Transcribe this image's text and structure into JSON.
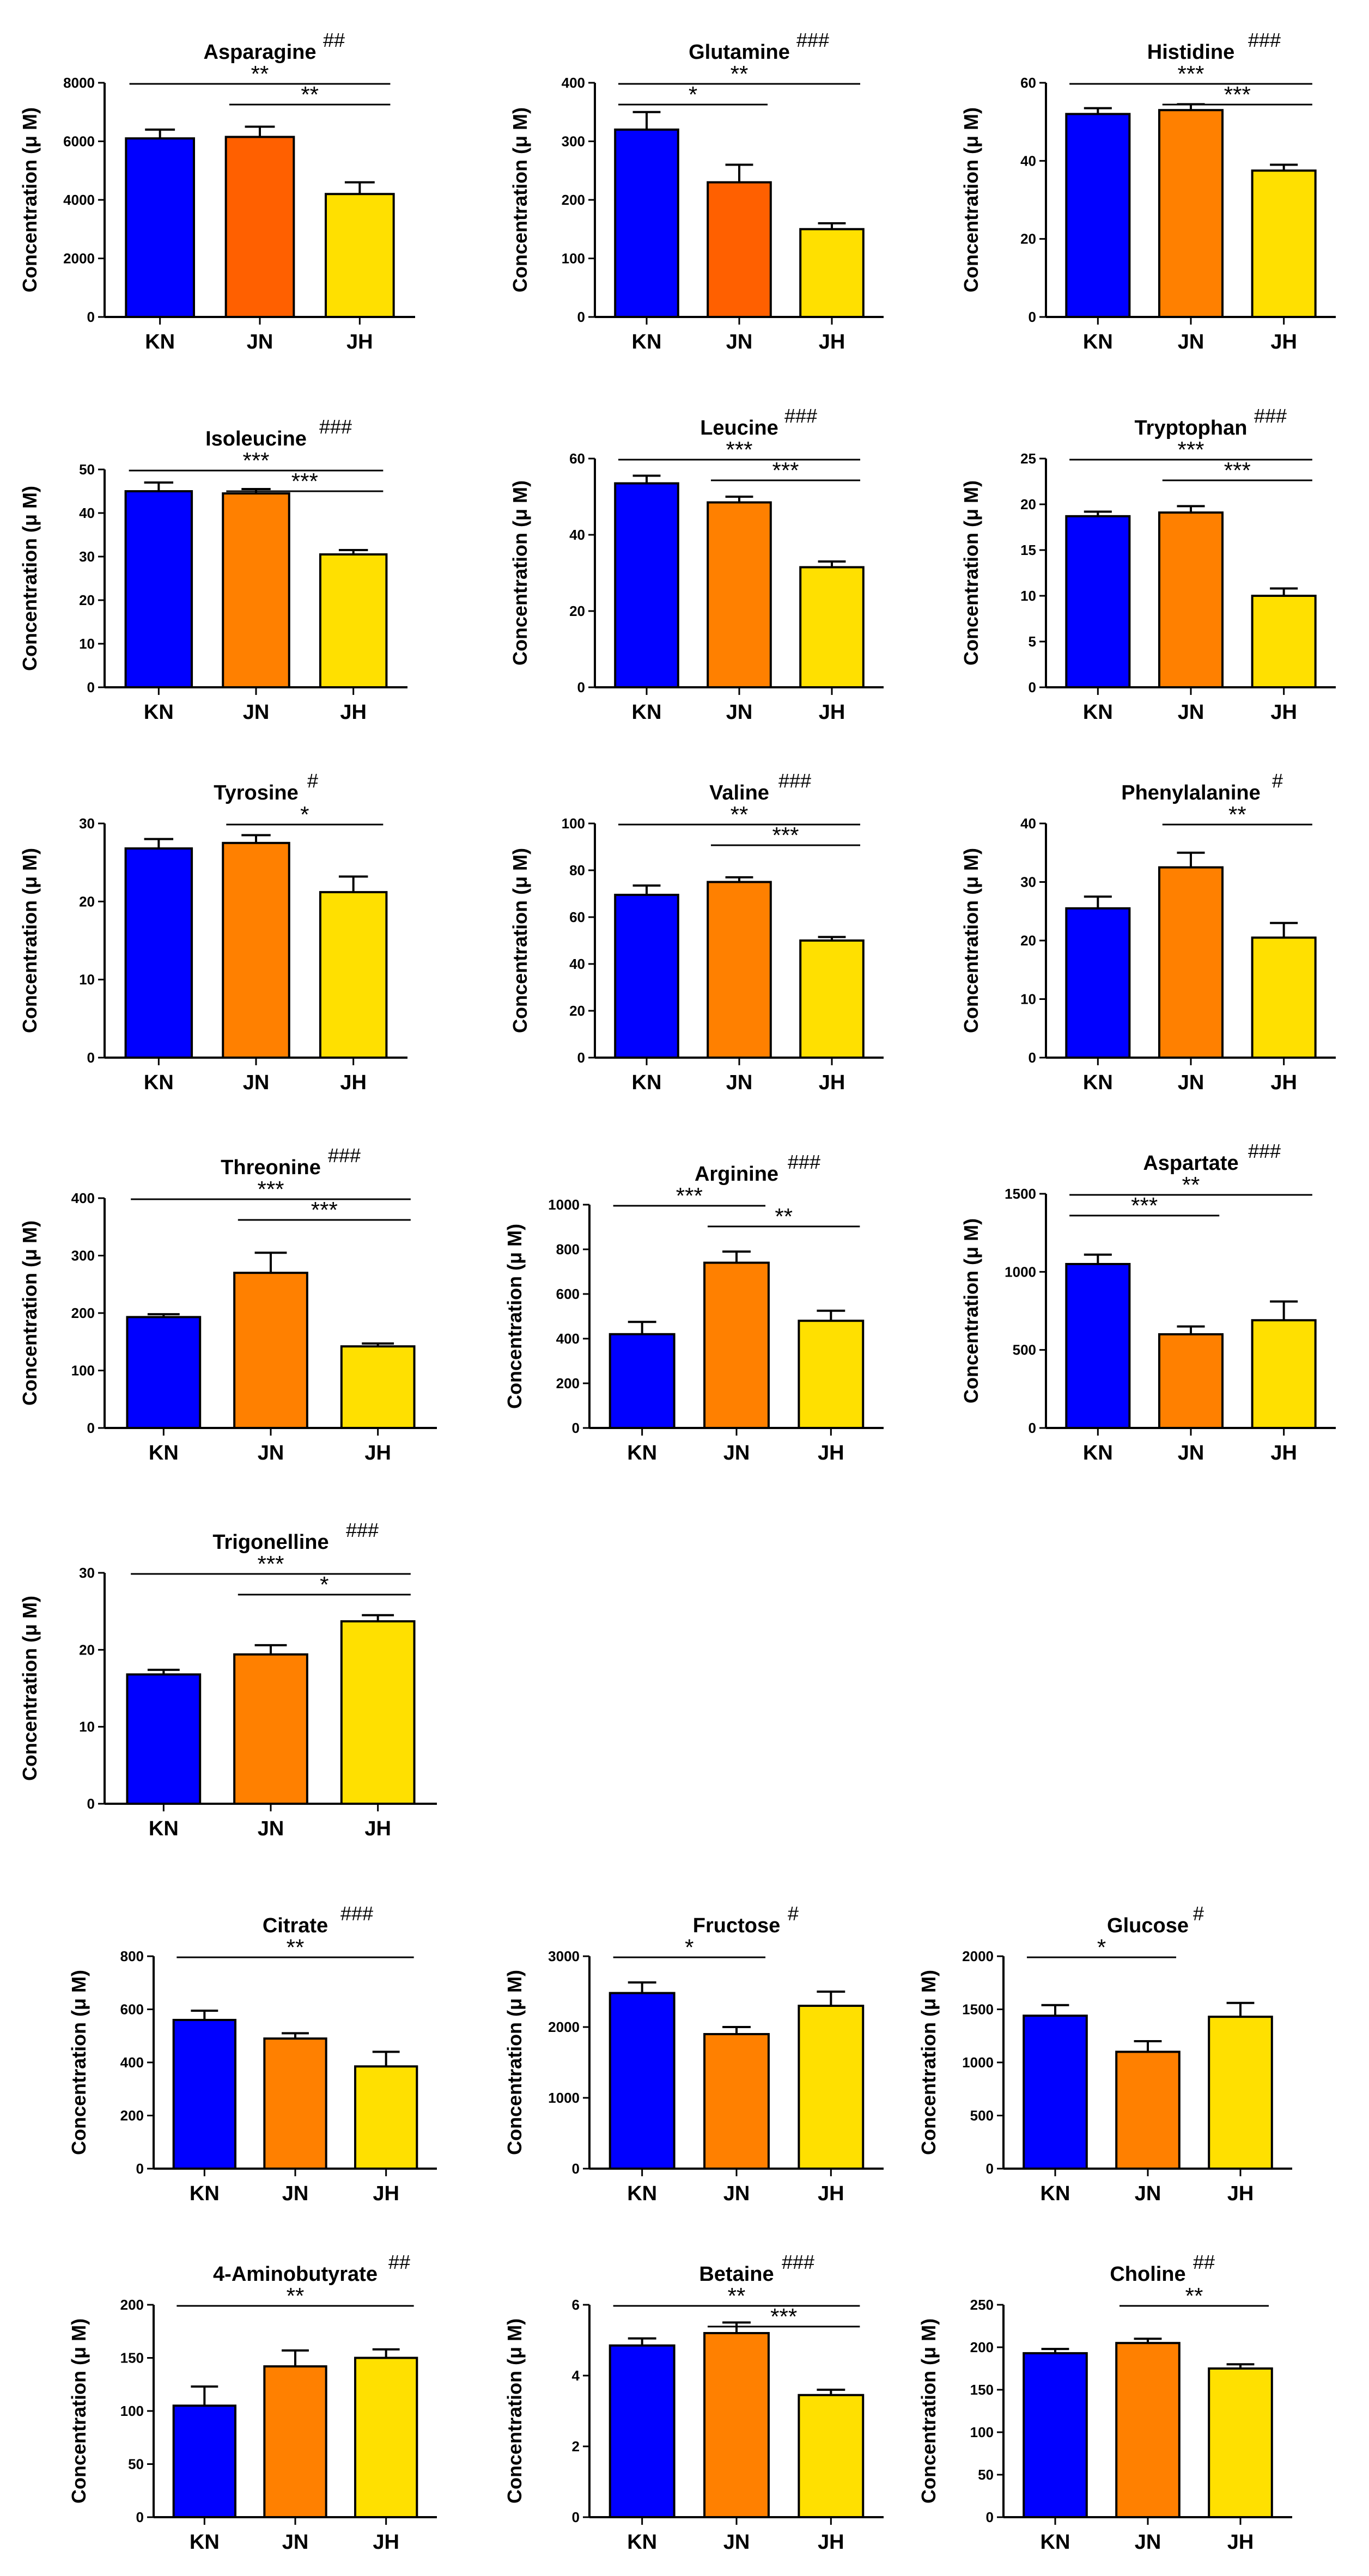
{
  "figure": {
    "ylabel_default": "Concentration (μ M)"
  },
  "colors": {
    "KN": "#0000FF",
    "JN": "#FF8000",
    "JN_alt": "#FF6000",
    "JH": "#FFE000"
  },
  "chart_data": [
    {
      "id": "asparagine",
      "type": "bar",
      "title": "Asparagine",
      "hashes": "##",
      "ylabel": "Concentration (μ M)",
      "categories": [
        "KN",
        "JN",
        "JH"
      ],
      "values": [
        6100,
        6150,
        4200
      ],
      "errors": [
        300,
        350,
        400
      ],
      "ylim": [
        0,
        8000
      ],
      "yticks": [
        0,
        2000,
        4000,
        6000,
        8000
      ],
      "jn_color": "JN_alt",
      "sig": [
        {
          "from": 0,
          "to": 2,
          "label": "**"
        },
        {
          "from": 1,
          "to": 2,
          "label": "**"
        }
      ]
    },
    {
      "id": "glutamine",
      "type": "bar",
      "title": "Glutamine",
      "hashes": "###",
      "ylabel": "Concentration (μ M)",
      "categories": [
        "KN",
        "JN",
        "JH"
      ],
      "values": [
        320,
        230,
        150
      ],
      "errors": [
        30,
        30,
        10
      ],
      "ylim": [
        0,
        400
      ],
      "yticks": [
        0,
        100,
        200,
        300,
        400
      ],
      "jn_color": "JN_alt",
      "sig": [
        {
          "from": 0,
          "to": 2,
          "label": "**"
        },
        {
          "from": 0,
          "to": 1,
          "label": "*"
        }
      ]
    },
    {
      "id": "histidine",
      "type": "bar",
      "title": "Histidine",
      "hashes": "###",
      "ylabel": "Concentration (μ M)",
      "categories": [
        "KN",
        "JN",
        "JH"
      ],
      "values": [
        52,
        53,
        37.5
      ],
      "errors": [
        1.5,
        1.5,
        1.5
      ],
      "ylim": [
        0,
        60
      ],
      "yticks": [
        0,
        20,
        40,
        60
      ],
      "sig": [
        {
          "from": 0,
          "to": 2,
          "label": "***"
        },
        {
          "from": 1,
          "to": 2,
          "label": "***"
        }
      ]
    },
    {
      "id": "isoleucine",
      "type": "bar",
      "title": "Isoleucine",
      "hashes": "###",
      "ylabel": "Concentration (μ M)",
      "categories": [
        "KN",
        "JN",
        "JH"
      ],
      "values": [
        45,
        44.5,
        30.5
      ],
      "errors": [
        2,
        1,
        1
      ],
      "ylim": [
        0,
        50
      ],
      "yticks": [
        0,
        10,
        20,
        30,
        40,
        50
      ],
      "sig": [
        {
          "from": 0,
          "to": 2,
          "label": "***"
        },
        {
          "from": 1,
          "to": 2,
          "label": "***"
        }
      ]
    },
    {
      "id": "leucine",
      "type": "bar",
      "title": "Leucine",
      "hashes": "###",
      "ylabel": "Concentration (μ M)",
      "categories": [
        "KN",
        "JN",
        "JH"
      ],
      "values": [
        53.5,
        48.5,
        31.5
      ],
      "errors": [
        2,
        1.5,
        1.5
      ],
      "ylim": [
        0,
        60
      ],
      "yticks": [
        0,
        20,
        40,
        60
      ],
      "sig": [
        {
          "from": 0,
          "to": 2,
          "label": "***"
        },
        {
          "from": 1,
          "to": 2,
          "label": "***"
        }
      ]
    },
    {
      "id": "tryptophan",
      "type": "bar",
      "title": "Tryptophan",
      "hashes": "###",
      "ylabel": "Concentration (μ M)",
      "categories": [
        "KN",
        "JN",
        "JH"
      ],
      "values": [
        18.7,
        19.1,
        10
      ],
      "errors": [
        0.5,
        0.7,
        0.8
      ],
      "ylim": [
        0,
        25
      ],
      "yticks": [
        0,
        5,
        10,
        15,
        20,
        25
      ],
      "sig": [
        {
          "from": 0,
          "to": 2,
          "label": "***"
        },
        {
          "from": 1,
          "to": 2,
          "label": "***"
        }
      ]
    },
    {
      "id": "tyrosine",
      "type": "bar",
      "title": "Tyrosine",
      "hashes": "#",
      "ylabel": "Concentration (μ M)",
      "categories": [
        "KN",
        "JN",
        "JH"
      ],
      "values": [
        26.8,
        27.5,
        21.2
      ],
      "errors": [
        1.2,
        1,
        2
      ],
      "ylim": [
        0,
        30
      ],
      "yticks": [
        0,
        10,
        20,
        30
      ],
      "sig": [
        {
          "from": 1,
          "to": 2,
          "label": "*"
        }
      ]
    },
    {
      "id": "valine",
      "type": "bar",
      "title": "Valine",
      "hashes": "###",
      "ylabel": "Concentration (μ M)",
      "categories": [
        "KN",
        "JN",
        "JH"
      ],
      "values": [
        69.5,
        75,
        50
      ],
      "errors": [
        4,
        2,
        1.5
      ],
      "ylim": [
        0,
        100
      ],
      "yticks": [
        0,
        20,
        40,
        60,
        80,
        100
      ],
      "sig": [
        {
          "from": 0,
          "to": 2,
          "label": "**"
        },
        {
          "from": 1,
          "to": 2,
          "label": "***"
        }
      ]
    },
    {
      "id": "phenylalanine",
      "type": "bar",
      "title": "Phenylalanine",
      "hashes": "#",
      "ylabel": "Concentration (μ M)",
      "categories": [
        "KN",
        "JN",
        "JH"
      ],
      "values": [
        25.5,
        32.5,
        20.5
      ],
      "errors": [
        2,
        2.5,
        2.5
      ],
      "ylim": [
        0,
        40
      ],
      "yticks": [
        0,
        10,
        20,
        30,
        40
      ],
      "sig": [
        {
          "from": 1,
          "to": 2,
          "label": "**"
        }
      ]
    },
    {
      "id": "threonine",
      "type": "bar",
      "title": "Threonine",
      "hashes": "###",
      "ylabel": "Concentration (μ M)",
      "categories": [
        "KN",
        "JN",
        "JH"
      ],
      "values": [
        193,
        270,
        142
      ],
      "errors": [
        5,
        35,
        5
      ],
      "ylim": [
        0,
        400
      ],
      "yticks": [
        0,
        100,
        200,
        300,
        400
      ],
      "sig": [
        {
          "from": 0,
          "to": 2,
          "label": "***"
        },
        {
          "from": 1,
          "to": 2,
          "label": "***"
        }
      ]
    },
    {
      "id": "arginine",
      "type": "bar",
      "title": "Arginine",
      "hashes": "###",
      "ylabel": "Concentration (μ M)",
      "categories": [
        "KN",
        "JN",
        "JH"
      ],
      "values": [
        420,
        740,
        480
      ],
      "errors": [
        55,
        50,
        45
      ],
      "ylim": [
        0,
        1000
      ],
      "yticks": [
        0,
        200,
        400,
        600,
        800,
        1000
      ],
      "sig": [
        {
          "from": 0,
          "to": 1,
          "label": "***"
        },
        {
          "from": 1,
          "to": 2,
          "label": "**"
        }
      ]
    },
    {
      "id": "aspartate",
      "type": "bar",
      "title": "Aspartate",
      "hashes": "###",
      "ylabel": "Concentration (μ M)",
      "categories": [
        "KN",
        "JN",
        "JH"
      ],
      "values": [
        1050,
        600,
        690
      ],
      "errors": [
        60,
        50,
        120
      ],
      "ylim": [
        0,
        1500
      ],
      "yticks": [
        0,
        500,
        1000,
        1500
      ],
      "sig": [
        {
          "from": 0,
          "to": 2,
          "label": "**"
        },
        {
          "from": 0,
          "to": 1,
          "label": "***"
        }
      ]
    },
    {
      "id": "trigonelline",
      "type": "bar",
      "title": "Trigonelline",
      "hashes": "###",
      "ylabel": "Concentration (μ M)",
      "categories": [
        "KN",
        "JN",
        "JH"
      ],
      "values": [
        16.8,
        19.4,
        23.7
      ],
      "errors": [
        0.6,
        1.2,
        0.8
      ],
      "ylim": [
        0,
        30
      ],
      "yticks": [
        0,
        10,
        20,
        30
      ],
      "sig": [
        {
          "from": 0,
          "to": 2,
          "label": "***"
        },
        {
          "from": 1,
          "to": 2,
          "label": "*"
        }
      ]
    },
    {
      "id": "citrate",
      "type": "bar",
      "title": "Citrate",
      "hashes": "###",
      "ylabel": "Concentration (μ M)",
      "categories": [
        "KN",
        "JN",
        "JH"
      ],
      "values": [
        560,
        490,
        385
      ],
      "errors": [
        35,
        20,
        55
      ],
      "ylim": [
        0,
        800
      ],
      "yticks": [
        0,
        200,
        400,
        600,
        800
      ],
      "sig": [
        {
          "from": 0,
          "to": 2,
          "label": "**"
        }
      ]
    },
    {
      "id": "fructose",
      "type": "bar",
      "title": "Fructose",
      "hashes": "#",
      "ylabel": "Concentration (μ M)",
      "categories": [
        "KN",
        "JN",
        "JH"
      ],
      "values": [
        2480,
        1900,
        2300
      ],
      "errors": [
        150,
        100,
        200
      ],
      "ylim": [
        0,
        3000
      ],
      "yticks": [
        0,
        1000,
        2000,
        3000
      ],
      "sig": [
        {
          "from": 0,
          "to": 1,
          "label": "*"
        }
      ]
    },
    {
      "id": "glucose",
      "type": "bar",
      "title": "Glucose",
      "hashes": "#",
      "ylabel": "Concentration (μ M)",
      "categories": [
        "KN",
        "JN",
        "JH"
      ],
      "values": [
        1440,
        1100,
        1430
      ],
      "errors": [
        100,
        100,
        130
      ],
      "ylim": [
        0,
        2000
      ],
      "yticks": [
        0,
        500,
        1000,
        1500,
        2000
      ],
      "sig": [
        {
          "from": 0,
          "to": 1,
          "label": "*"
        }
      ]
    },
    {
      "id": "aminobutyrate",
      "type": "bar",
      "title": "4-Aminobutyrate",
      "hashes": "##",
      "ylabel": "Concentration (μ M)",
      "categories": [
        "KN",
        "JN",
        "JH"
      ],
      "values": [
        105,
        142,
        150
      ],
      "errors": [
        18,
        15,
        8
      ],
      "ylim": [
        0,
        200
      ],
      "yticks": [
        0,
        50,
        100,
        150,
        200
      ],
      "sig": [
        {
          "from": 0,
          "to": 2,
          "label": "**"
        }
      ]
    },
    {
      "id": "betaine",
      "type": "bar",
      "title": "Betaine",
      "hashes": "###",
      "ylabel": "Concentration (μ M)",
      "categories": [
        "KN",
        "JN",
        "JH"
      ],
      "values": [
        4.85,
        5.2,
        3.45
      ],
      "errors": [
        0.2,
        0.3,
        0.15
      ],
      "ylim": [
        0,
        6
      ],
      "yticks": [
        0,
        2,
        4,
        6
      ],
      "sig": [
        {
          "from": 0,
          "to": 2,
          "label": "**"
        },
        {
          "from": 1,
          "to": 2,
          "label": "***"
        }
      ]
    },
    {
      "id": "choline",
      "type": "bar",
      "title": "Choline",
      "hashes": "##",
      "ylabel": "Concentration (μ M)",
      "categories": [
        "KN",
        "JN",
        "JH"
      ],
      "values": [
        193,
        205,
        175
      ],
      "errors": [
        5,
        5,
        5
      ],
      "ylim": [
        0,
        250
      ],
      "yticks": [
        0,
        50,
        100,
        150,
        200,
        250
      ],
      "sig": [
        {
          "from": 1,
          "to": 2,
          "label": "**"
        }
      ]
    }
  ]
}
